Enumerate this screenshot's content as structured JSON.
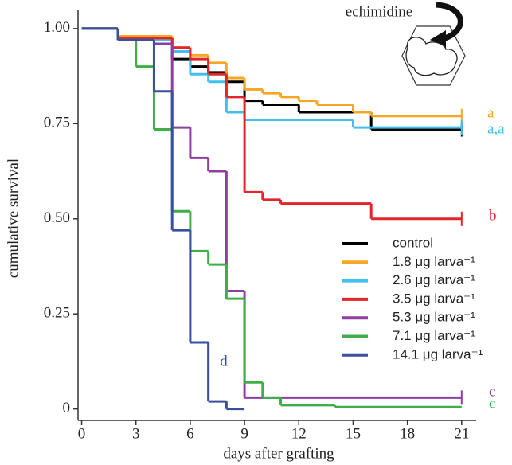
{
  "chart_data": {
    "type": "step",
    "xlabel": "days after grafting",
    "ylabel": "cumulative survival",
    "inset_label": "echimidine",
    "xlim": [
      -0.2,
      21.8
    ],
    "ylim": [
      -0.03,
      1.05
    ],
    "xticks": [
      0,
      3,
      6,
      9,
      12,
      15,
      18,
      21
    ],
    "yticks": [
      {
        "value": 1,
        "label": "1.00"
      },
      {
        "value": 0.75,
        "label": "0.75"
      },
      {
        "value": 0.5,
        "label": "0.50"
      },
      {
        "value": 0.25,
        "label": "0.25"
      },
      0
    ],
    "legend": "lower right",
    "series": [
      {
        "name": "control",
        "color": "#000000",
        "censored": true,
        "x": [
          0,
          2,
          5,
          6,
          7,
          8,
          9,
          10,
          12,
          16,
          21
        ],
        "values": [
          1,
          0.975,
          0.92,
          0.9,
          0.885,
          0.86,
          0.81,
          0.8,
          0.78,
          0.735,
          0.735
        ]
      },
      {
        "name": "1.8 μg larva⁻¹",
        "color": "#f5a623",
        "censored": true,
        "x": [
          0,
          2,
          5,
          6,
          7,
          8,
          9,
          10,
          11,
          12,
          13,
          15,
          16,
          21
        ],
        "values": [
          1,
          0.98,
          0.95,
          0.93,
          0.91,
          0.87,
          0.84,
          0.83,
          0.82,
          0.81,
          0.8,
          0.78,
          0.77,
          0.77
        ]
      },
      {
        "name": "2.6 μg larva⁻¹",
        "color": "#3fc0ef",
        "censored": true,
        "x": [
          0,
          2,
          5,
          6,
          7,
          8,
          9,
          15,
          21
        ],
        "values": [
          1,
          0.97,
          0.94,
          0.88,
          0.86,
          0.78,
          0.76,
          0.74,
          0.74
        ]
      },
      {
        "name": "3.5 μg larva⁻¹",
        "color": "#e0262a",
        "censored": true,
        "x": [
          0,
          2,
          5,
          6,
          7,
          8,
          9,
          10,
          11,
          16,
          21
        ],
        "values": [
          1,
          0.975,
          0.95,
          0.92,
          0.88,
          0.82,
          0.57,
          0.55,
          0.54,
          0.5,
          0.5
        ]
      },
      {
        "name": "5.3 μg larva⁻¹",
        "color": "#8e3fa0",
        "censored": true,
        "x": [
          0,
          2,
          4,
          5,
          6,
          7,
          8,
          9,
          21
        ],
        "values": [
          1,
          0.97,
          0.96,
          0.74,
          0.66,
          0.625,
          0.31,
          0.03,
          0.03
        ]
      },
      {
        "name": "7.1 μg larva⁻¹",
        "color": "#3fae49",
        "censored": false,
        "x": [
          0,
          2,
          3,
          4,
          5,
          6,
          7,
          8,
          9,
          10,
          11,
          14,
          21
        ],
        "values": [
          1,
          0.97,
          0.9,
          0.735,
          0.52,
          0.415,
          0.38,
          0.29,
          0.07,
          0.03,
          0.01,
          0.005,
          0.005
        ]
      },
      {
        "name": "14.1 μg larva⁻¹",
        "color": "#3a4fa0",
        "censored": false,
        "x": [
          0,
          2,
          4,
          5,
          6,
          7,
          8,
          9
        ],
        "values": [
          1,
          0.97,
          0.835,
          0.47,
          0.175,
          0.02,
          0,
          0
        ]
      }
    ],
    "annotations": [
      {
        "text": "a",
        "color": "#f5a623"
      },
      {
        "text": "a,a",
        "color": "#3fc0ef"
      },
      {
        "text": "b",
        "color": "#e0262a"
      },
      {
        "text": "c",
        "color": "#8e3fa0"
      },
      {
        "text": "c",
        "color": "#3fae49"
      },
      {
        "text": "d",
        "color": "#3a4fa0"
      }
    ]
  }
}
